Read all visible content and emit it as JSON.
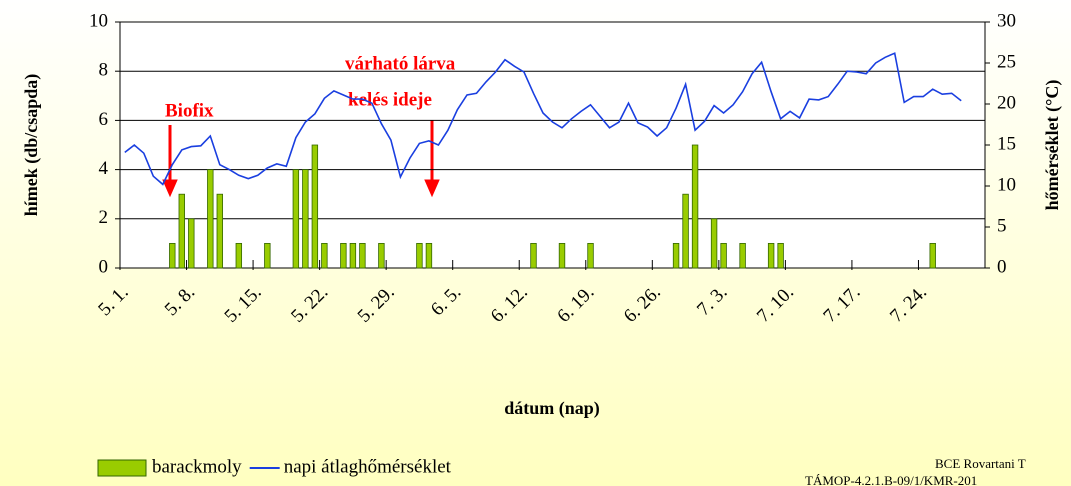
{
  "chart_data": {
    "type": "bar",
    "ylabel": "hímek (db/csapda)",
    "y2label": "hőmérséklet (°C)",
    "xlabel": "dátum (nap)",
    "categories": [
      "5. 1.",
      null,
      null,
      null,
      null,
      null,
      null,
      "5. 8.",
      null,
      null,
      null,
      null,
      null,
      null,
      "5. 15.",
      null,
      null,
      null,
      null,
      null,
      null,
      "5. 22.",
      null,
      null,
      null,
      null,
      null,
      null,
      "5. 29.",
      null,
      null,
      null,
      null,
      null,
      null,
      "6. 5.",
      null,
      null,
      null,
      null,
      null,
      null,
      "6. 12.",
      null,
      null,
      null,
      null,
      null,
      null,
      "6. 19.",
      null,
      null,
      null,
      null,
      null,
      null,
      "6. 26.",
      null,
      null,
      null,
      null,
      null,
      null,
      "7. 3.",
      null,
      null,
      null,
      null,
      null,
      null,
      "7. 10.",
      null,
      null,
      null,
      null,
      null,
      null,
      "7. 17.",
      null,
      null,
      null,
      null,
      null,
      null,
      "7. 24.",
      null,
      null,
      null,
      null,
      null,
      null
    ],
    "series": [
      {
        "name": "barackmoly",
        "type": "bar",
        "color": "#99cc00",
        "values": [
          0,
          0,
          0,
          0,
          0,
          1,
          3,
          2,
          0,
          4,
          3,
          0,
          1,
          0,
          0,
          1,
          0,
          0,
          4,
          4,
          5,
          1,
          0,
          1,
          1,
          1,
          0,
          1,
          0,
          0,
          0,
          1,
          1,
          0,
          0,
          0,
          0,
          0,
          0,
          0,
          0,
          0,
          0,
          1,
          0,
          0,
          1,
          0,
          0,
          1,
          0,
          0,
          0,
          0,
          0,
          0,
          0,
          0,
          1,
          3,
          5,
          0,
          2,
          1,
          0,
          1,
          0,
          0,
          1,
          1,
          0,
          0,
          0,
          0,
          0,
          0,
          0,
          0,
          0,
          0,
          0,
          0,
          0,
          0,
          0,
          1,
          0,
          0,
          0,
          0,
          0
        ]
      },
      {
        "name": "napi átlaghőmérséklet",
        "type": "line",
        "axis": "y2",
        "color": "#1a3fe0",
        "values": [
          14.1,
          15,
          14,
          11.2,
          10.2,
          12.6,
          14.4,
          14.8,
          14.9,
          16.1,
          12.6,
          12,
          11.3,
          10.9,
          11.3,
          12.2,
          12.7,
          12.4,
          15.9,
          17.8,
          18.8,
          20.7,
          21.6,
          21.1,
          20.6,
          20.6,
          20.1,
          17.6,
          15.6,
          11.1,
          13.4,
          15.2,
          15.5,
          15,
          16.8,
          19.3,
          21.1,
          21.3,
          22.7,
          23.9,
          25.4,
          24.6,
          23.9,
          21.3,
          18.9,
          17.8,
          17.1,
          18.2,
          19.1,
          19.9,
          18.5,
          17.1,
          17.8,
          20.1,
          17.7,
          17.2,
          16.1,
          17.1,
          19.5,
          22.4,
          16.8,
          17.9,
          19.8,
          18.9,
          19.9,
          21.5,
          23.7,
          25.1,
          21.5,
          18.2,
          19.1,
          18.3,
          20.6,
          20.5,
          20.9,
          22.4,
          24,
          23.9,
          23.7,
          25,
          25.7,
          26.2,
          20.2,
          20.9,
          20.9,
          21.8,
          21.2,
          21.3,
          20.4,
          null,
          null
        ]
      }
    ],
    "ylim": [
      0,
      10
    ],
    "yticks": [
      0,
      2,
      4,
      6,
      8,
      10
    ],
    "y2lim": [
      0,
      30
    ],
    "y2ticks": [
      0,
      5,
      10,
      15,
      20,
      25,
      30
    ],
    "grid": true,
    "legend": "bottom",
    "annotations": [
      "Biofix",
      "várható lárva",
      "kelés ideje"
    ],
    "notes": [
      "BCE Rovartani T",
      "TÁMOP-4.2.1.B-09/1/KMR-201"
    ]
  }
}
